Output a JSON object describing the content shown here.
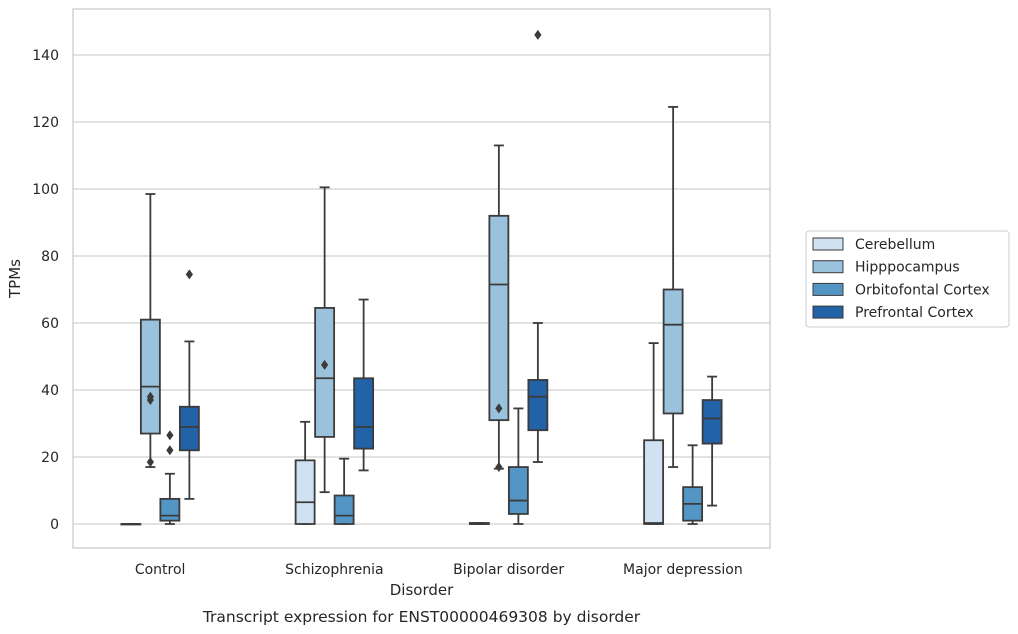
{
  "chart_data": {
    "type": "box",
    "title": "",
    "caption": "Transcript expression for ENST00000469308 by disorder",
    "xlabel": "Disorder",
    "ylabel": "TPMs",
    "ylim": [
      -7,
      154
    ],
    "yticks": [
      0,
      20,
      40,
      60,
      80,
      100,
      120,
      140
    ],
    "grid": "horizontal",
    "legend_position": "right",
    "categories": [
      "Control",
      "Schizophrenia",
      "Bipolar disorder",
      "Major depression"
    ],
    "series": [
      {
        "name": "Cerebellum",
        "color": "#d0e1f2",
        "boxes": [
          {
            "whisker_low": 0,
            "q1": 0,
            "median": 0,
            "q3": 0,
            "whisker_high": 0,
            "outliers": []
          },
          {
            "whisker_low": 0,
            "q1": 0,
            "median": 6.5,
            "q3": 19,
            "whisker_high": 30.5,
            "outliers": []
          },
          {
            "whisker_low": 0,
            "q1": 0,
            "median": 0,
            "q3": 0.3,
            "whisker_high": 0.3,
            "outliers": []
          },
          {
            "whisker_low": 0,
            "q1": 0,
            "median": 0.3,
            "q3": 25,
            "whisker_high": 54,
            "outliers": []
          }
        ]
      },
      {
        "name": "Hipppocampus",
        "color": "#9ac2dc",
        "boxes": [
          {
            "whisker_low": 17,
            "q1": 27,
            "median": 41,
            "q3": 61,
            "whisker_high": 98.5,
            "outliers": [
              37,
              38,
              18.5
            ]
          },
          {
            "whisker_low": 9.5,
            "q1": 26,
            "median": 43.5,
            "q3": 64.5,
            "whisker_high": 100.5,
            "outliers": [
              47.5
            ]
          },
          {
            "whisker_low": 16.5,
            "q1": 31,
            "median": 71.5,
            "q3": 92,
            "whisker_high": 113,
            "outliers": [
              34.5,
              17
            ]
          },
          {
            "whisker_low": 17,
            "q1": 33,
            "median": 59.5,
            "q3": 70,
            "whisker_high": 124.5,
            "outliers": []
          }
        ]
      },
      {
        "name": "Orbitofontal Cortex",
        "color": "#5396c6",
        "boxes": [
          {
            "whisker_low": 0,
            "q1": 1,
            "median": 2.5,
            "q3": 7.5,
            "whisker_high": 15,
            "outliers": [
              26.5,
              22
            ]
          },
          {
            "whisker_low": 0,
            "q1": 0,
            "median": 2.5,
            "q3": 8.5,
            "whisker_high": 19.5,
            "outliers": []
          },
          {
            "whisker_low": 0,
            "q1": 3,
            "median": 7,
            "q3": 17,
            "whisker_high": 34.5,
            "outliers": []
          },
          {
            "whisker_low": 0,
            "q1": 1,
            "median": 6,
            "q3": 11,
            "whisker_high": 23.5,
            "outliers": []
          }
        ]
      },
      {
        "name": "Prefrontal Cortex",
        "color": "#2262a6",
        "boxes": [
          {
            "whisker_low": 7.5,
            "q1": 22,
            "median": 29,
            "q3": 35,
            "whisker_high": 54.5,
            "outliers": [
              74.5
            ]
          },
          {
            "whisker_low": 16,
            "q1": 22.5,
            "median": 29,
            "q3": 43.5,
            "whisker_high": 67,
            "outliers": []
          },
          {
            "whisker_low": 18.5,
            "q1": 28,
            "median": 38,
            "q3": 43,
            "whisker_high": 60,
            "outliers": [
              146
            ]
          },
          {
            "whisker_low": 5.5,
            "q1": 24,
            "median": 31.5,
            "q3": 37,
            "whisker_high": 44,
            "outliers": []
          }
        ]
      }
    ]
  }
}
